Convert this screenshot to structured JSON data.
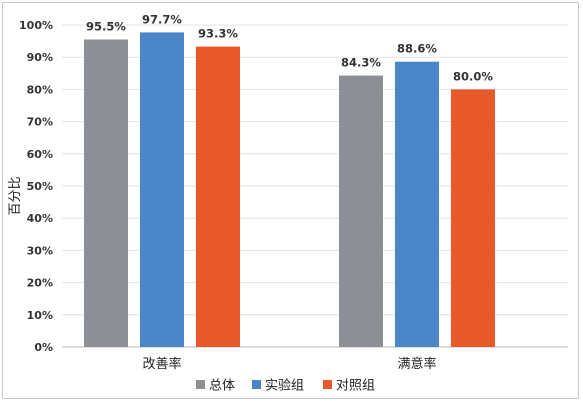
{
  "chart_data": {
    "type": "bar",
    "categories": [
      "改善率",
      "满意率"
    ],
    "series": [
      {
        "name": "总体",
        "color": "#8c8f94",
        "values": [
          95.5,
          84.3
        ],
        "labels": [
          "95.5%",
          "84.3%"
        ]
      },
      {
        "name": "实验组",
        "color": "#4a86c8",
        "values": [
          97.7,
          88.6
        ],
        "labels": [
          "97.7%",
          "88.6%"
        ]
      },
      {
        "name": "对照组",
        "color": "#e8582a",
        "values": [
          93.3,
          80.0
        ],
        "labels": [
          "93.3%",
          "80.0%"
        ]
      }
    ],
    "ylabel": "百分比",
    "ylim": [
      0,
      100
    ],
    "yticks": [
      "0%",
      "10%",
      "20%",
      "30%",
      "40%",
      "50%",
      "60%",
      "70%",
      "80%",
      "90%",
      "100%"
    ],
    "grid": true,
    "legend_position": "bottom"
  }
}
